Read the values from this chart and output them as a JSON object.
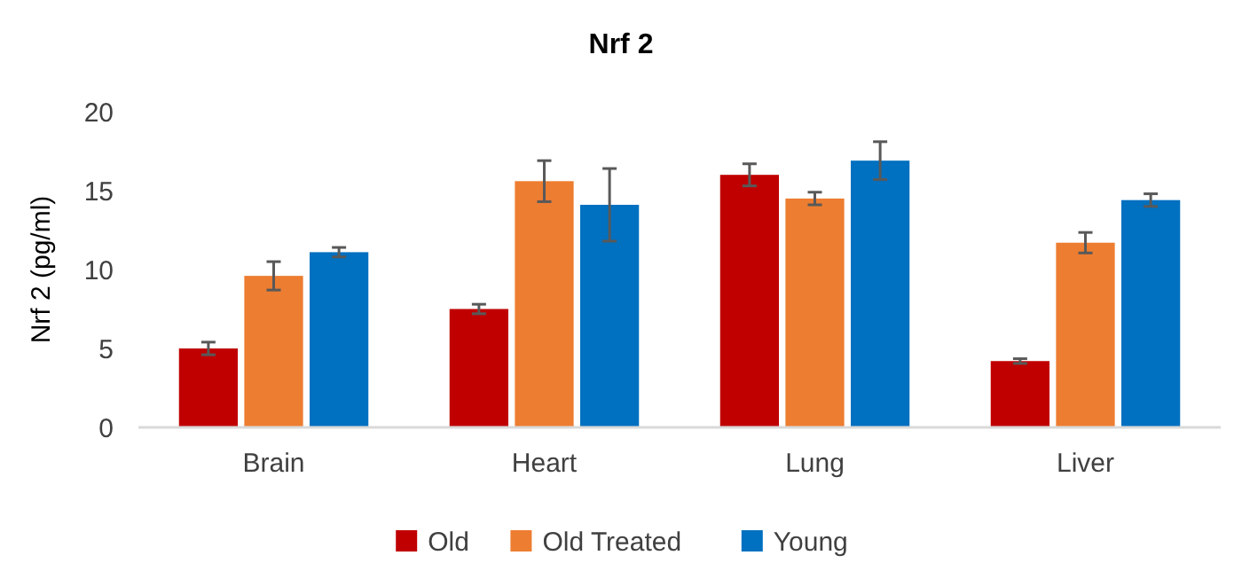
{
  "chart_data": {
    "type": "bar",
    "title": "Nrf 2",
    "ylabel": "Nrf 2 (pg/ml)",
    "categories": [
      "Brain",
      "Heart",
      "Lung",
      "Liver"
    ],
    "series": [
      {
        "name": "Old",
        "color": "#c00000",
        "values": [
          5.0,
          7.5,
          16.0,
          4.2
        ],
        "errors": [
          0.4,
          0.3,
          0.7,
          0.15
        ]
      },
      {
        "name": "Old Treated",
        "color": "#ed7d31",
        "values": [
          9.6,
          15.6,
          14.5,
          11.7
        ],
        "errors": [
          0.9,
          1.3,
          0.4,
          0.65
        ]
      },
      {
        "name": "Young",
        "color": "#0070c0",
        "values": [
          11.1,
          14.1,
          16.9,
          14.4
        ],
        "errors": [
          0.3,
          2.3,
          1.2,
          0.4
        ]
      }
    ],
    "ylim": [
      0,
      20
    ],
    "yticks": [
      0,
      5,
      10,
      15,
      20
    ],
    "grid": false,
    "legend": "bottom"
  }
}
